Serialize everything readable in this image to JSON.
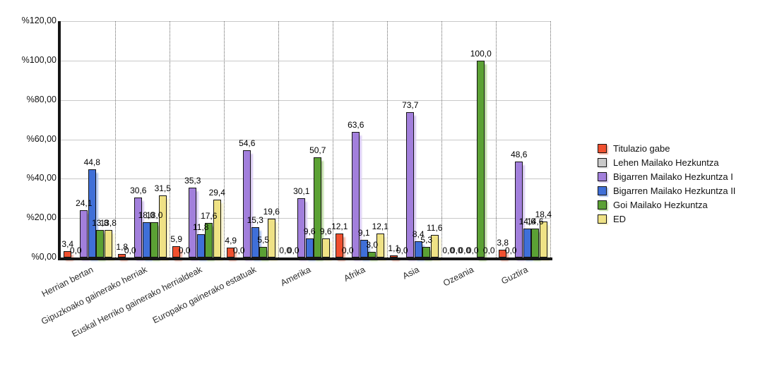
{
  "chart_data": {
    "type": "bar",
    "title": "",
    "xlabel": "",
    "ylabel": "",
    "grid": true,
    "legend_position": "right",
    "number_format": "comma-decimal",
    "ymax": 120,
    "y_ticks": [
      "%0,00",
      "%20,00",
      "%40,00",
      "%60,00",
      "%80,00",
      "%100,00",
      "%120,00"
    ],
    "categories": [
      "Herrian bertan",
      "Gipuzkoako gainerako herriak",
      "Euskal Herriko gainerako herrialdeak",
      "Europako gainerako estatuak",
      "Amerika",
      "Afrika",
      "Asia",
      "Ozeania",
      "Guztira"
    ],
    "series": [
      {
        "name": "Titulazio gabe",
        "color": "#F0502F",
        "shadow": "#f8b4a2",
        "values": [
          "3,4",
          "1,8",
          "5,9",
          "4,9",
          "0,0",
          "12,1",
          "1,1",
          "0,0",
          "3,8"
        ]
      },
      {
        "name": "Lehen Mailako Hezkuntza",
        "color": "#c8c8c8",
        "shadow": "#e6e6e6",
        "values": [
          "0,0",
          "0,0",
          "0,0",
          "0,0",
          "0,0",
          "0,0",
          "0,0",
          "0,0",
          "0,0"
        ]
      },
      {
        "name": "Bigarren Mailako Hezkuntza I",
        "color": "#a27fdc",
        "shadow": "#d8c8f2",
        "values": [
          "24,1",
          "30,6",
          "35,3",
          "54,6",
          "30,1",
          "63,6",
          "73,7",
          "0,0",
          "48,6"
        ]
      },
      {
        "name": "Bigarren Mailako Hezkuntza II",
        "color": "#3f6fd8",
        "shadow": "#aec4ef",
        "values": [
          "44,8",
          "18,0",
          "11,8",
          "15,3",
          "9,6",
          "9,1",
          "8,4",
          "0,0",
          "14,6"
        ]
      },
      {
        "name": "Goi Mailako Hezkuntza",
        "color": "#5ba134",
        "shadow": "#bbdaa0",
        "values": [
          "13,8",
          "18,0",
          "17,6",
          "5,5",
          "50,7",
          "3,0",
          "5,3",
          "100,0",
          "14,6"
        ]
      },
      {
        "name": "ED",
        "color": "#efe285",
        "shadow": "#f9f3ca",
        "values": [
          "13,8",
          "31,5",
          "29,4",
          "19,6",
          "9,6",
          "12,1",
          "11,6",
          "0,0",
          "18,4"
        ]
      }
    ]
  }
}
